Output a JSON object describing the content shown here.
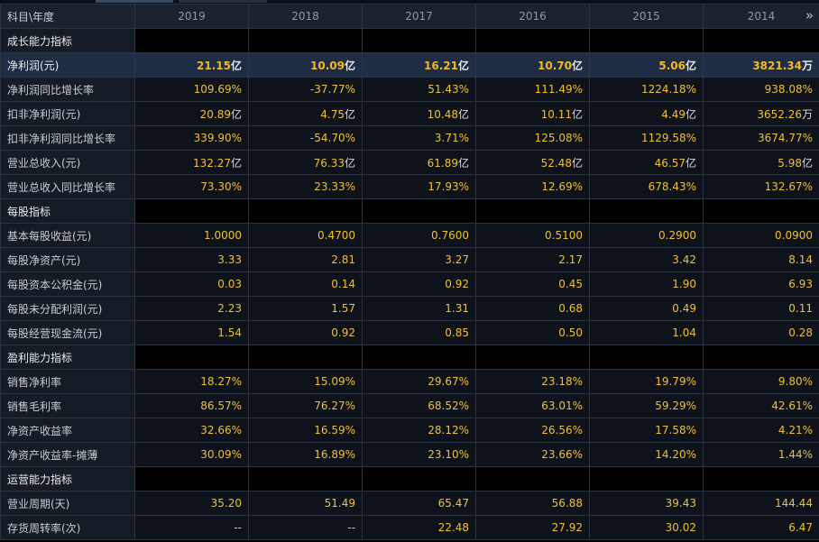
{
  "header": {
    "label": "科目\\年度",
    "years": [
      "2019",
      "2018",
      "2017",
      "2016",
      "2015",
      "2014"
    ],
    "scroll_icon": "double-chevron-right-icon"
  },
  "colors": {
    "value": "#f0c030",
    "highlight_row": "#1e2d44",
    "border": "#2b3442"
  },
  "rows": [
    {
      "type": "section",
      "label": "成长能力指标"
    },
    {
      "type": "highlight",
      "label": "净利润(元)",
      "values": [
        {
          "n": "21.15",
          "u": "亿"
        },
        {
          "n": "10.09",
          "u": "亿"
        },
        {
          "n": "16.21",
          "u": "亿"
        },
        {
          "n": "10.70",
          "u": "亿"
        },
        {
          "n": "5.06",
          "u": "亿"
        },
        {
          "n": "3821.34",
          "u": "万"
        }
      ]
    },
    {
      "type": "data",
      "label": "净利润同比增长率",
      "values": [
        {
          "n": "109.69%",
          "u": ""
        },
        {
          "n": "-37.77%",
          "u": ""
        },
        {
          "n": "51.43%",
          "u": ""
        },
        {
          "n": "111.49%",
          "u": ""
        },
        {
          "n": "1224.18%",
          "u": ""
        },
        {
          "n": "938.08%",
          "u": ""
        }
      ]
    },
    {
      "type": "data",
      "label": "扣非净利润(元)",
      "values": [
        {
          "n": "20.89",
          "u": "亿"
        },
        {
          "n": "4.75",
          "u": "亿"
        },
        {
          "n": "10.48",
          "u": "亿"
        },
        {
          "n": "10.11",
          "u": "亿"
        },
        {
          "n": "4.49",
          "u": "亿"
        },
        {
          "n": "3652.26",
          "u": "万"
        }
      ]
    },
    {
      "type": "data",
      "label": "扣非净利润同比增长率",
      "values": [
        {
          "n": "339.90%",
          "u": ""
        },
        {
          "n": "-54.70%",
          "u": ""
        },
        {
          "n": "3.71%",
          "u": ""
        },
        {
          "n": "125.08%",
          "u": ""
        },
        {
          "n": "1129.58%",
          "u": ""
        },
        {
          "n": "3674.77%",
          "u": ""
        }
      ]
    },
    {
      "type": "data",
      "label": "营业总收入(元)",
      "values": [
        {
          "n": "132.27",
          "u": "亿"
        },
        {
          "n": "76.33",
          "u": "亿"
        },
        {
          "n": "61.89",
          "u": "亿"
        },
        {
          "n": "52.48",
          "u": "亿"
        },
        {
          "n": "46.57",
          "u": "亿"
        },
        {
          "n": "5.98",
          "u": "亿"
        }
      ]
    },
    {
      "type": "data",
      "label": "营业总收入同比增长率",
      "values": [
        {
          "n": "73.30%",
          "u": ""
        },
        {
          "n": "23.33%",
          "u": ""
        },
        {
          "n": "17.93%",
          "u": ""
        },
        {
          "n": "12.69%",
          "u": ""
        },
        {
          "n": "678.43%",
          "u": ""
        },
        {
          "n": "132.67%",
          "u": ""
        }
      ]
    },
    {
      "type": "section",
      "label": "每股指标"
    },
    {
      "type": "data",
      "label": "基本每股收益(元)",
      "values": [
        {
          "n": "1.0000",
          "u": ""
        },
        {
          "n": "0.4700",
          "u": ""
        },
        {
          "n": "0.7600",
          "u": ""
        },
        {
          "n": "0.5100",
          "u": ""
        },
        {
          "n": "0.2900",
          "u": ""
        },
        {
          "n": "0.0900",
          "u": ""
        }
      ]
    },
    {
      "type": "data",
      "label": "每股净资产(元)",
      "values": [
        {
          "n": "3.33",
          "u": ""
        },
        {
          "n": "2.81",
          "u": ""
        },
        {
          "n": "3.27",
          "u": ""
        },
        {
          "n": "2.17",
          "u": ""
        },
        {
          "n": "3.42",
          "u": ""
        },
        {
          "n": "8.14",
          "u": ""
        }
      ]
    },
    {
      "type": "data",
      "label": "每股资本公积金(元)",
      "values": [
        {
          "n": "0.03",
          "u": ""
        },
        {
          "n": "0.14",
          "u": ""
        },
        {
          "n": "0.92",
          "u": ""
        },
        {
          "n": "0.45",
          "u": ""
        },
        {
          "n": "1.90",
          "u": ""
        },
        {
          "n": "6.93",
          "u": ""
        }
      ]
    },
    {
      "type": "data",
      "label": "每股未分配利润(元)",
      "values": [
        {
          "n": "2.23",
          "u": ""
        },
        {
          "n": "1.57",
          "u": ""
        },
        {
          "n": "1.31",
          "u": ""
        },
        {
          "n": "0.68",
          "u": ""
        },
        {
          "n": "0.49",
          "u": ""
        },
        {
          "n": "0.11",
          "u": ""
        }
      ]
    },
    {
      "type": "data",
      "label": "每股经营现金流(元)",
      "values": [
        {
          "n": "1.54",
          "u": ""
        },
        {
          "n": "0.92",
          "u": ""
        },
        {
          "n": "0.85",
          "u": ""
        },
        {
          "n": "0.50",
          "u": ""
        },
        {
          "n": "1.04",
          "u": ""
        },
        {
          "n": "0.28",
          "u": ""
        }
      ]
    },
    {
      "type": "section",
      "label": "盈利能力指标"
    },
    {
      "type": "data",
      "label": "销售净利率",
      "values": [
        {
          "n": "18.27%",
          "u": ""
        },
        {
          "n": "15.09%",
          "u": ""
        },
        {
          "n": "29.67%",
          "u": ""
        },
        {
          "n": "23.18%",
          "u": ""
        },
        {
          "n": "19.79%",
          "u": ""
        },
        {
          "n": "9.80%",
          "u": ""
        }
      ]
    },
    {
      "type": "data",
      "label": "销售毛利率",
      "values": [
        {
          "n": "86.57%",
          "u": ""
        },
        {
          "n": "76.27%",
          "u": ""
        },
        {
          "n": "68.52%",
          "u": ""
        },
        {
          "n": "63.01%",
          "u": ""
        },
        {
          "n": "59.29%",
          "u": ""
        },
        {
          "n": "42.61%",
          "u": ""
        }
      ]
    },
    {
      "type": "data",
      "label": "净资产收益率",
      "values": [
        {
          "n": "32.66%",
          "u": ""
        },
        {
          "n": "16.59%",
          "u": ""
        },
        {
          "n": "28.12%",
          "u": ""
        },
        {
          "n": "26.56%",
          "u": ""
        },
        {
          "n": "17.58%",
          "u": ""
        },
        {
          "n": "4.21%",
          "u": ""
        }
      ]
    },
    {
      "type": "data",
      "label": "净资产收益率-摊薄",
      "values": [
        {
          "n": "30.09%",
          "u": ""
        },
        {
          "n": "16.89%",
          "u": ""
        },
        {
          "n": "23.10%",
          "u": ""
        },
        {
          "n": "23.66%",
          "u": ""
        },
        {
          "n": "14.20%",
          "u": ""
        },
        {
          "n": "1.44%",
          "u": ""
        }
      ]
    },
    {
      "type": "section",
      "label": "运营能力指标"
    },
    {
      "type": "data",
      "label": "营业周期(天)",
      "values": [
        {
          "n": "35.20",
          "u": ""
        },
        {
          "n": "51.49",
          "u": ""
        },
        {
          "n": "65.47",
          "u": ""
        },
        {
          "n": "56.88",
          "u": ""
        },
        {
          "n": "39.43",
          "u": ""
        },
        {
          "n": "144.44",
          "u": ""
        }
      ]
    },
    {
      "type": "data",
      "label": "存货周转率(次)",
      "values": [
        {
          "n": "--",
          "u": ""
        },
        {
          "n": "--",
          "u": ""
        },
        {
          "n": "22.48",
          "u": ""
        },
        {
          "n": "27.92",
          "u": ""
        },
        {
          "n": "30.02",
          "u": ""
        },
        {
          "n": "6.47",
          "u": ""
        }
      ]
    }
  ]
}
